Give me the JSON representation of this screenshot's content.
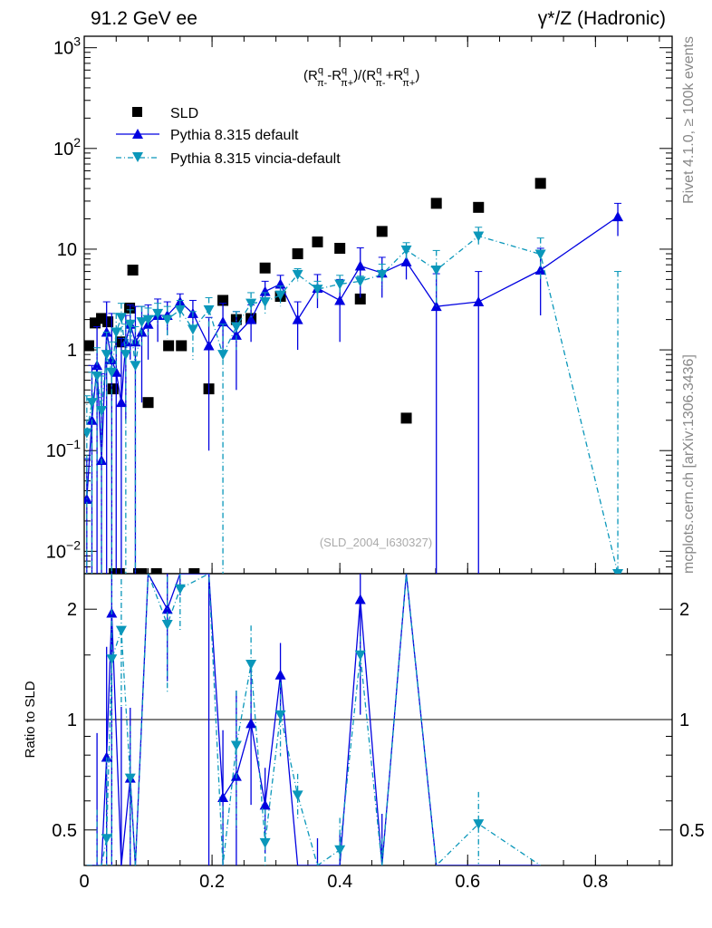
{
  "header": {
    "left": "91.2 GeV ee",
    "right": "γ*/Z (Hadronic)"
  },
  "side": {
    "rivet": "Rivet 4.1.0, ≥ 100k events",
    "mcplots": "mcplots.cern.ch [arXiv:1306.3436]"
  },
  "watermark": "(SLD_2004_I630327)",
  "colors": {
    "data": "#000000",
    "default": "#0000e0",
    "vincia": "#0a97ba"
  },
  "chart_data": {
    "type": "scatter",
    "title": "(R^q_π- - R^q_π+)/(R^q_π- + R^q_π+)",
    "title_parts": {
      "open": "(R",
      "sup": "q",
      "sub1": "π-",
      "minus": "-R",
      "sub2": "π+",
      "mid": ")/(R",
      "plus": "+R",
      "close": ")"
    },
    "xlabel": "",
    "ylabel": "",
    "ratio_ylabel": "Ratio to SLD",
    "xlim": [
      0,
      0.92
    ],
    "ylim": [
      0.006,
      1300
    ],
    "yscale": "log",
    "ratio_ylim": [
      0.4,
      2.5
    ],
    "x_ticks": [
      "0",
      "0.2",
      "0.4",
      "0.6",
      "0.8"
    ],
    "x_tick_values": [
      0,
      0.2,
      0.4,
      0.6,
      0.8
    ],
    "y_ticks": [
      {
        "v": 0.01,
        "base": "10",
        "exp": "−2"
      },
      {
        "v": 0.1,
        "base": "10",
        "exp": "−1"
      },
      {
        "v": 1,
        "base": "1",
        "exp": ""
      },
      {
        "v": 10,
        "base": "10",
        "exp": ""
      },
      {
        "v": 100,
        "base": "10",
        "exp": "2"
      },
      {
        "v": 1000,
        "base": "10",
        "exp": "3"
      }
    ],
    "ratio_ticks": [
      {
        "v": 0.5,
        "label": "0.5"
      },
      {
        "v": 1,
        "label": "1"
      },
      {
        "v": 2,
        "label": "2"
      }
    ],
    "legend": [
      "SLD",
      "Pythia 8.315 default",
      "Pythia 8.315 vincia-default"
    ],
    "legend_position": "top-left",
    "series": [
      {
        "name": "SLD",
        "marker": "square",
        "x": [
          0.007,
          0.017,
          0.027,
          0.037,
          0.045,
          0.057,
          0.071,
          0.076,
          0.1,
          0.132,
          0.152,
          0.195,
          0.217,
          0.238,
          0.261,
          0.283,
          0.307,
          0.334,
          0.365,
          0.4,
          0.432,
          0.466,
          0.504,
          0.551,
          0.617,
          0.714,
          0.047,
          0.055,
          0.085,
          0.09,
          0.113,
          0.172
        ],
        "y": [
          1.1,
          1.85,
          2.05,
          1.9,
          0.41,
          1.2,
          2.6,
          6.2,
          0.3,
          1.1,
          1.1,
          0.41,
          3.1,
          2.0,
          2.05,
          6.5,
          3.4,
          9.0,
          11.8,
          10.2,
          3.2,
          15,
          0.21,
          28.5,
          26,
          45,
          0.004,
          0.004,
          0.004,
          0.004,
          0.004,
          0.004
        ]
      },
      {
        "name": "Pythia 8.315 default",
        "marker": "triangle-up",
        "line": "solid",
        "x": [
          0.004,
          0.012,
          0.02,
          0.027,
          0.035,
          0.043,
          0.05,
          0.058,
          0.065,
          0.072,
          0.08,
          0.09,
          0.1,
          0.115,
          0.13,
          0.15,
          0.17,
          0.195,
          0.217,
          0.238,
          0.261,
          0.283,
          0.307,
          0.334,
          0.365,
          0.4,
          0.432,
          0.466,
          0.504,
          0.551,
          0.617,
          0.714,
          0.835
        ],
        "y": [
          0.033,
          0.2,
          0.7,
          0.08,
          1.5,
          0.8,
          0.6,
          0.3,
          1.2,
          1.8,
          1.2,
          1.5,
          1.8,
          2.2,
          2.2,
          3.0,
          2.3,
          1.1,
          1.9,
          1.4,
          2.0,
          3.8,
          4.5,
          2.0,
          4.1,
          3.1,
          6.8,
          5.8,
          7.5,
          2.7,
          3.0,
          6.2,
          21
        ],
        "err": [
          0.05,
          0.5,
          1.0,
          0.5,
          1.5,
          1.5,
          1.0,
          1.0,
          1.0,
          1.0,
          1.5,
          1.2,
          1.0,
          1.0,
          0.8,
          0.6,
          0.8,
          1.0,
          1.0,
          1.0,
          0.8,
          1.0,
          1.0,
          1.0,
          1.5,
          1.9,
          3.5,
          2.5,
          2.5,
          3.0,
          3.0,
          4.0,
          7.5
        ]
      },
      {
        "name": "Pythia 8.315 vincia-default",
        "marker": "triangle-down",
        "line": "dashdot",
        "x": [
          0.004,
          0.012,
          0.02,
          0.027,
          0.035,
          0.043,
          0.05,
          0.058,
          0.065,
          0.072,
          0.08,
          0.09,
          0.1,
          0.115,
          0.13,
          0.15,
          0.17,
          0.195,
          0.217,
          0.238,
          0.261,
          0.283,
          0.307,
          0.334,
          0.365,
          0.4,
          0.432,
          0.466,
          0.504,
          0.551,
          0.617,
          0.714,
          0.835
        ],
        "y": [
          0.15,
          0.3,
          0.55,
          0.25,
          0.9,
          0.6,
          1.5,
          2.1,
          0.9,
          1.8,
          0.7,
          1.9,
          2.0,
          2.3,
          2.0,
          2.5,
          1.6,
          2.5,
          0.9,
          1.7,
          2.9,
          3.0,
          3.5,
          5.6,
          4.0,
          4.5,
          4.8,
          5.6,
          9.8,
          6.2,
          13.5,
          8.9,
          0.006
        ],
        "err": [
          0.2,
          0.3,
          0.5,
          0.3,
          0.6,
          0.6,
          0.8,
          0.8,
          0.9,
          0.7,
          1.0,
          0.8,
          0.6,
          0.6,
          0.7,
          0.6,
          0.8,
          0.8,
          0.9,
          0.7,
          0.8,
          0.7,
          0.8,
          0.8,
          0.8,
          1.0,
          0.6,
          1.5,
          1.8,
          3.5,
          3.0,
          4.0,
          6.0
        ]
      }
    ]
  }
}
